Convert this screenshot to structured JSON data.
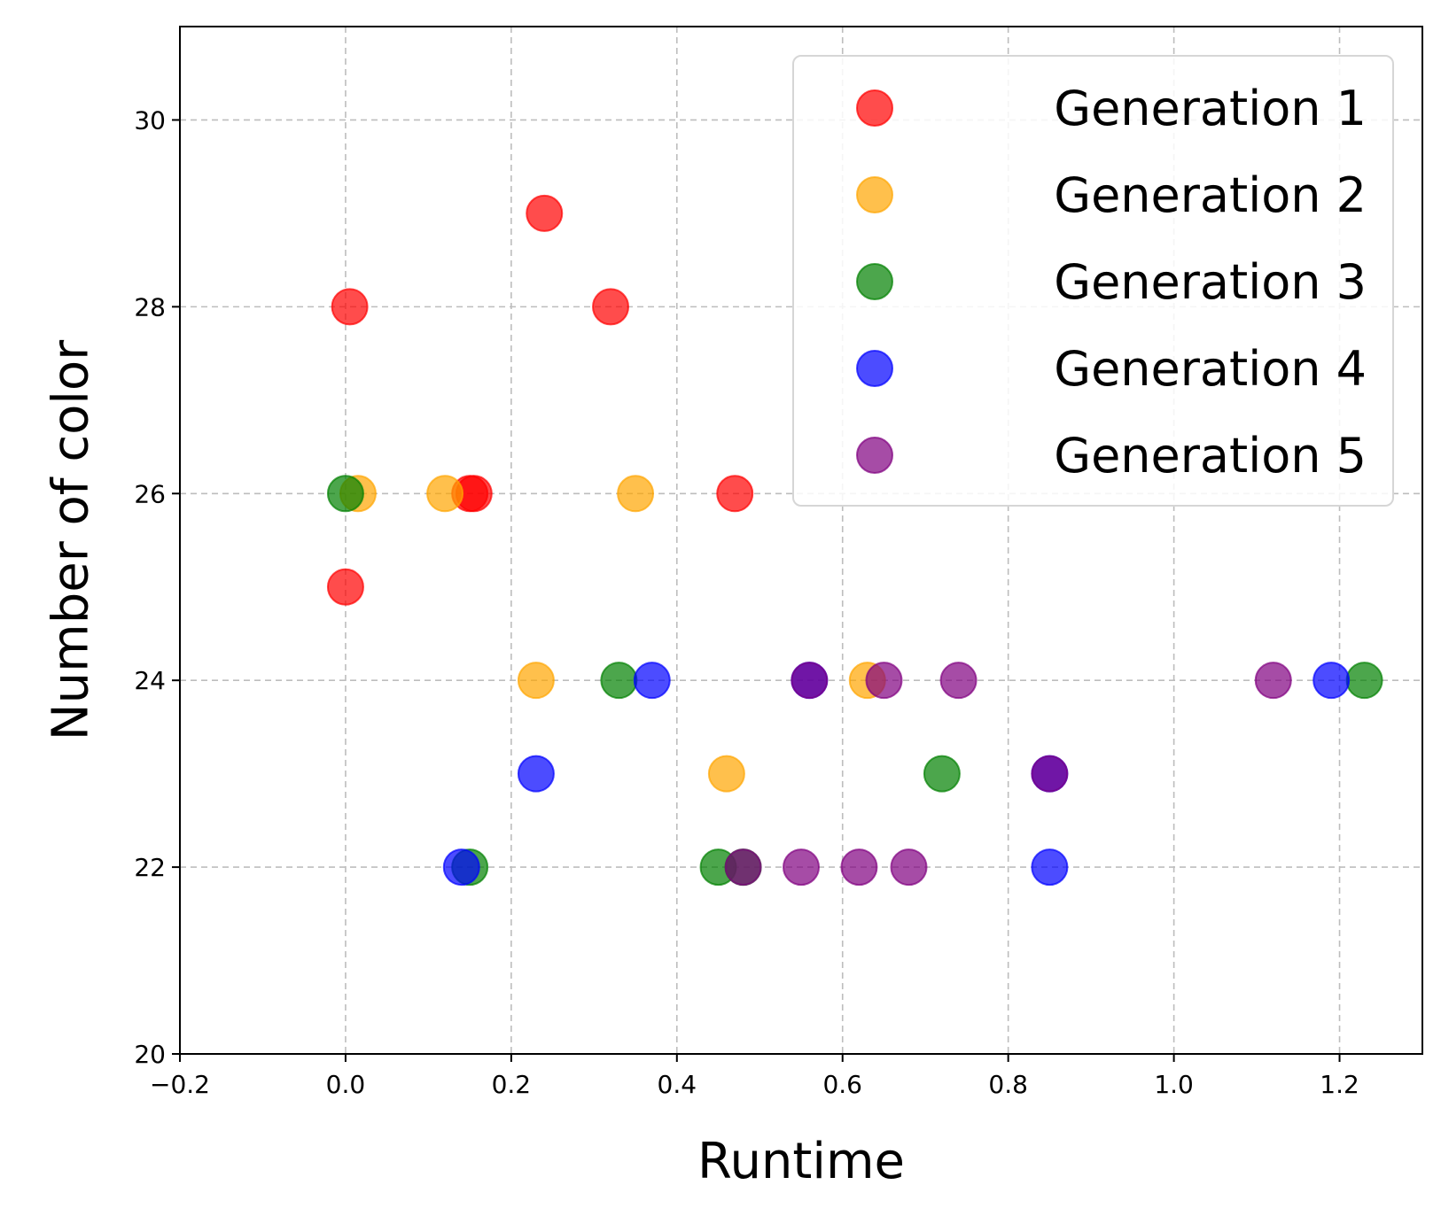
{
  "chart_data": {
    "type": "scatter",
    "title": "",
    "xlabel": "Runtime",
    "ylabel": "Number of color",
    "xlim": [
      -0.2,
      1.3
    ],
    "ylim": [
      20,
      31
    ],
    "xticks": [
      -0.2,
      0.0,
      0.2,
      0.4,
      0.6,
      0.8,
      1.0,
      1.2
    ],
    "xtick_labels": [
      "−0.2",
      "0.0",
      "0.2",
      "0.4",
      "0.6",
      "0.8",
      "1.0",
      "1.2"
    ],
    "yticks": [
      20,
      22,
      24,
      26,
      28,
      30
    ],
    "ytick_labels": [
      "20",
      "22",
      "24",
      "26",
      "28",
      "30"
    ],
    "grid": true,
    "legend_position": "top-right",
    "series": [
      {
        "name": "Generation 1",
        "color": "#ff0000",
        "points": [
          {
            "x": 0.005,
            "y": 28
          },
          {
            "x": 0.24,
            "y": 29
          },
          {
            "x": 0.32,
            "y": 28
          },
          {
            "x": 0.15,
            "y": 26
          },
          {
            "x": 0.155,
            "y": 26
          },
          {
            "x": 0.47,
            "y": 26
          },
          {
            "x": 0.0,
            "y": 25
          }
        ]
      },
      {
        "name": "Generation 2",
        "color": "#ffa500",
        "points": [
          {
            "x": 0.015,
            "y": 26
          },
          {
            "x": 0.12,
            "y": 26
          },
          {
            "x": 0.35,
            "y": 26
          },
          {
            "x": 0.23,
            "y": 24
          },
          {
            "x": 0.63,
            "y": 24
          },
          {
            "x": 0.46,
            "y": 23
          }
        ]
      },
      {
        "name": "Generation 3",
        "color": "#008000",
        "points": [
          {
            "x": 0.0,
            "y": 26
          },
          {
            "x": 0.33,
            "y": 24
          },
          {
            "x": 1.23,
            "y": 24
          },
          {
            "x": 0.72,
            "y": 23
          },
          {
            "x": 0.15,
            "y": 22
          },
          {
            "x": 0.45,
            "y": 22
          },
          {
            "x": 0.48,
            "y": 22
          }
        ]
      },
      {
        "name": "Generation 4",
        "color": "#0000ff",
        "points": [
          {
            "x": 0.37,
            "y": 24
          },
          {
            "x": 0.56,
            "y": 24
          },
          {
            "x": 1.19,
            "y": 24
          },
          {
            "x": 0.23,
            "y": 23
          },
          {
            "x": 0.85,
            "y": 23
          },
          {
            "x": 0.14,
            "y": 22
          },
          {
            "x": 0.85,
            "y": 22
          }
        ]
      },
      {
        "name": "Generation 5",
        "color": "#800080",
        "points": [
          {
            "x": 0.56,
            "y": 24
          },
          {
            "x": 0.65,
            "y": 24
          },
          {
            "x": 0.74,
            "y": 24
          },
          {
            "x": 1.12,
            "y": 24
          },
          {
            "x": 0.85,
            "y": 23
          },
          {
            "x": 0.48,
            "y": 22
          },
          {
            "x": 0.55,
            "y": 22
          },
          {
            "x": 0.62,
            "y": 22
          },
          {
            "x": 0.68,
            "y": 22
          }
        ]
      }
    ]
  }
}
